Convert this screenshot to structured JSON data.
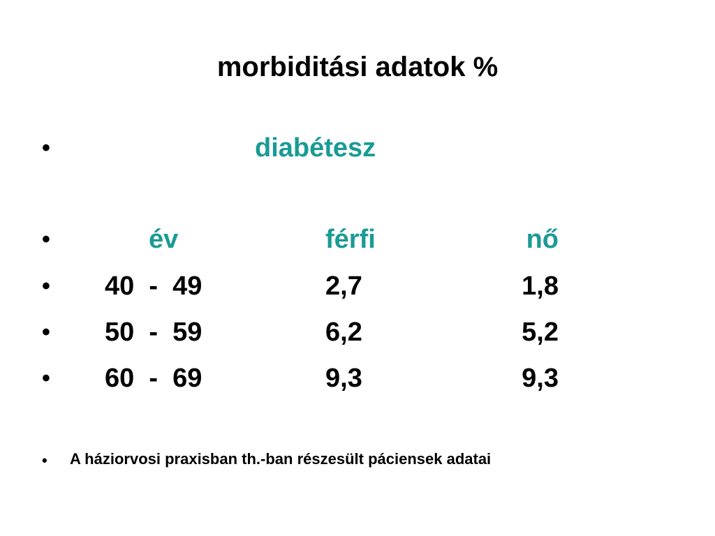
{
  "slide": {
    "title": "morbiditási adatok %",
    "bullet_char": "•",
    "category": "diabétesz",
    "headers": {
      "col1": "év",
      "col2": "férfi",
      "col3": "nő"
    },
    "rows": [
      {
        "age": "40  -  49",
        "male": "2,7",
        "female": "1,8"
      },
      {
        "age": "50  -  59",
        "male": "6,2",
        "female": "5,2"
      },
      {
        "age": "60  -  69",
        "male": "9,3",
        "female": "9,3"
      }
    ],
    "note": "A háziorvosi praxisban th.-ban részesült páciensek adatai"
  },
  "colors": {
    "accent": "#1a9a95",
    "text": "#000000",
    "background": "#ffffff"
  }
}
